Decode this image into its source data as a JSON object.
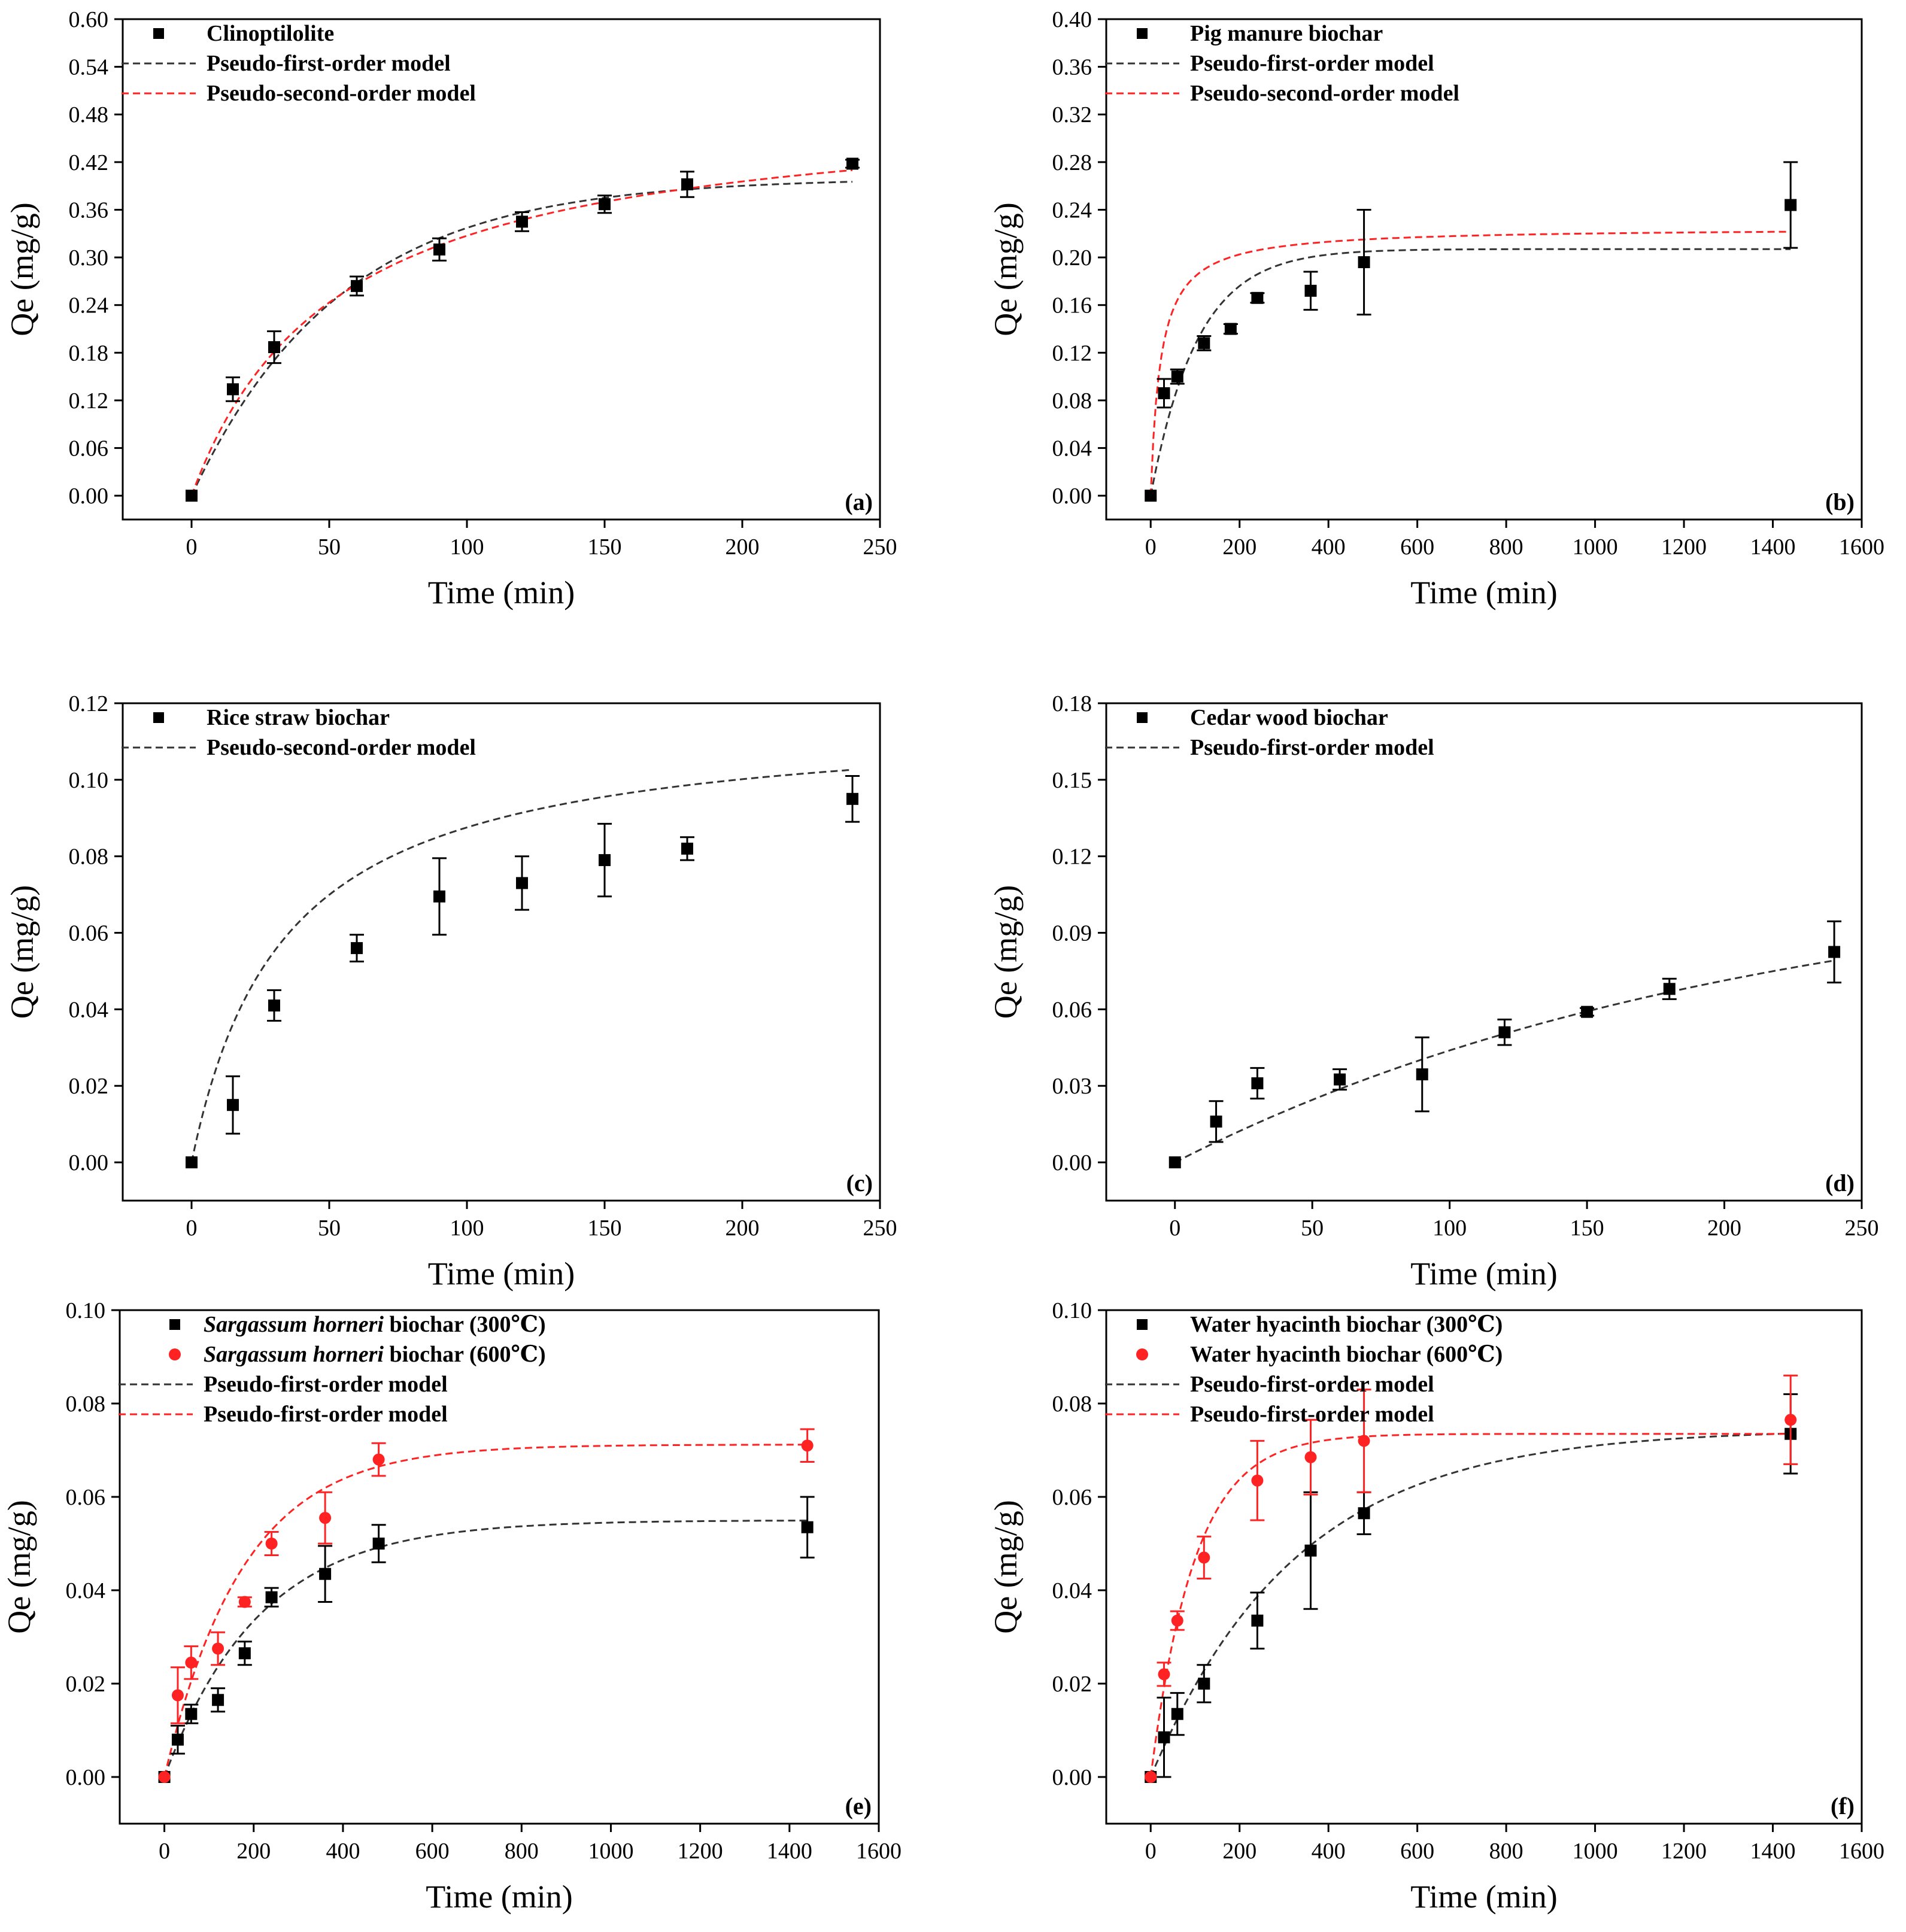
{
  "figure": {
    "name": "adsorption-kinetics-figure"
  },
  "chart_data": [
    {
      "type": "scatter",
      "panel_label": "(a)",
      "xlabel": "Time (min)",
      "ylabel": "Qe (mg/g)",
      "xlim": [
        -25,
        250
      ],
      "ylim": [
        -0.03,
        0.6
      ],
      "xticks": [
        0,
        50,
        100,
        150,
        200,
        250
      ],
      "yticks": [
        0.0,
        0.06,
        0.12,
        0.18,
        0.24,
        0.3,
        0.36,
        0.42,
        0.48,
        0.54,
        0.6
      ],
      "ytick_decimals": 2,
      "ytick_labels": [
        "0.00",
        "0.06",
        "0.12",
        "0.18",
        "0.24",
        "0.30",
        "0.36",
        "0.42",
        "0.48",
        "0.54",
        "0.60"
      ],
      "legend": [
        "Clinoptilolite",
        "Pseudo-first-order model",
        "Pseudo-second-order model"
      ],
      "points": [
        {
          "name": "Clinoptilolite",
          "color": "#000000",
          "marker": "square",
          "x": [
            0,
            15,
            30,
            60,
            90,
            120,
            150,
            180,
            240
          ],
          "y": [
            0.0,
            0.134,
            0.187,
            0.264,
            0.31,
            0.345,
            0.367,
            0.392,
            0.418
          ],
          "err": [
            0.0,
            0.015,
            0.02,
            0.012,
            0.014,
            0.012,
            0.011,
            0.016,
            0.005
          ]
        }
      ],
      "fits": [
        {
          "name": "Pseudo-first-order model",
          "color": "#333333",
          "kind": "pfo",
          "qe": 0.4,
          "k": 0.0185
        },
        {
          "name": "Pseudo-second-order model",
          "color": "#ff2222",
          "kind": "pso",
          "qe": 0.5,
          "k": 0.0379
        }
      ]
    },
    {
      "type": "scatter",
      "panel_label": "(b)",
      "xlabel": "Time (min)",
      "ylabel": "Qe (mg/g)",
      "xlim": [
        -100,
        1600
      ],
      "ylim": [
        -0.02,
        0.4
      ],
      "xticks": [
        0,
        200,
        400,
        600,
        800,
        1000,
        1200,
        1400,
        1600
      ],
      "yticks": [
        0.0,
        0.04,
        0.08,
        0.12,
        0.16,
        0.2,
        0.24,
        0.28,
        0.32,
        0.36,
        0.4
      ],
      "ytick_decimals": 2,
      "ytick_labels": [
        "0.00",
        "0.04",
        "0.08",
        "0.12",
        "0.16",
        "0.20",
        "0.24",
        "0.28",
        "0.32",
        "0.36",
        "0.40"
      ],
      "legend": [
        "Pig manure biochar",
        "Pseudo-first-order model",
        "Pseudo-second-order model"
      ],
      "points": [
        {
          "name": "Pig manure biochar",
          "color": "#000000",
          "marker": "square",
          "x": [
            0,
            30,
            60,
            120,
            180,
            240,
            360,
            480,
            1440
          ],
          "y": [
            0.0,
            0.086,
            0.1,
            0.128,
            0.14,
            0.166,
            0.172,
            0.196,
            0.244
          ],
          "err": [
            0.0,
            0.012,
            0.006,
            0.006,
            0.004,
            0.004,
            0.016,
            0.044,
            0.036
          ]
        }
      ],
      "fits": [
        {
          "name": "Pseudo-first-order model",
          "color": "#333333",
          "kind": "pfo",
          "qe": 0.207,
          "k": 0.0095
        },
        {
          "name": "Pseudo-second-order model",
          "color": "#ff2222",
          "kind": "pso",
          "qe": 0.225,
          "k": 0.2
        }
      ]
    },
    {
      "type": "scatter",
      "panel_label": "(c)",
      "xlabel": "Time (min)",
      "ylabel": "Qe (mg/g)",
      "xlim": [
        -25,
        250
      ],
      "ylim": [
        -0.01,
        0.12
      ],
      "xticks": [
        0,
        50,
        100,
        150,
        200,
        250
      ],
      "yticks": [
        0.0,
        0.02,
        0.04,
        0.06,
        0.08,
        0.1,
        0.12
      ],
      "ytick_decimals": 2,
      "ytick_labels": [
        "0.00",
        "0.02",
        "0.04",
        "0.06",
        "0.08",
        "0.10",
        "0.12"
      ],
      "legend": [
        "Rice straw biochar",
        "Pseudo-second-order model"
      ],
      "points": [
        {
          "name": "Rice straw biochar",
          "color": "#000000",
          "marker": "square",
          "x": [
            0,
            15,
            30,
            60,
            90,
            120,
            150,
            180,
            240
          ],
          "y": [
            0.0,
            0.015,
            0.041,
            0.056,
            0.0695,
            0.073,
            0.079,
            0.082,
            0.095
          ],
          "err": [
            0.0,
            0.0075,
            0.004,
            0.0035,
            0.01,
            0.007,
            0.0095,
            0.003,
            0.006
          ]
        }
      ],
      "fits": [
        {
          "name": "Pseudo-second-order model",
          "color": "#333333",
          "kind": "pso",
          "qe": 0.117,
          "k": 0.254
        }
      ]
    },
    {
      "type": "scatter",
      "panel_label": "(d)",
      "xlabel": "Time (min)",
      "ylabel": "Qe (mg/g)",
      "xlim": [
        -25,
        250
      ],
      "ylim": [
        -0.015,
        0.18
      ],
      "xticks": [
        0,
        50,
        100,
        150,
        200,
        250
      ],
      "yticks": [
        0.0,
        0.03,
        0.06,
        0.09,
        0.12,
        0.15,
        0.18
      ],
      "ytick_decimals": 2,
      "ytick_labels": [
        "0.00",
        "0.03",
        "0.06",
        "0.09",
        "0.12",
        "0.15",
        "0.18"
      ],
      "legend": [
        "Cedar wood biochar",
        "Pseudo-first-order model"
      ],
      "points": [
        {
          "name": "Cedar wood biochar",
          "color": "#000000",
          "marker": "square",
          "x": [
            0,
            15,
            30,
            60,
            90,
            120,
            150,
            180,
            240
          ],
          "y": [
            0.0,
            0.016,
            0.031,
            0.0325,
            0.0345,
            0.051,
            0.059,
            0.068,
            0.0825
          ],
          "err": [
            0.0,
            0.008,
            0.006,
            0.004,
            0.0145,
            0.005,
            0.0015,
            0.004,
            0.012
          ]
        }
      ],
      "fits": [
        {
          "name": "Pseudo-first-order model",
          "color": "#333333",
          "kind": "pfo",
          "qe": 0.117,
          "k": 0.0047
        }
      ]
    },
    {
      "type": "scatter",
      "panel_label": "(e)",
      "xlabel": "Time (min)",
      "ylabel": "Qe (mg/g)",
      "xlim": [
        -100,
        1600
      ],
      "ylim": [
        -0.01,
        0.1
      ],
      "xticks": [
        0,
        200,
        400,
        600,
        800,
        1000,
        1200,
        1400,
        1600
      ],
      "yticks": [
        0.0,
        0.02,
        0.04,
        0.06,
        0.08,
        0.1
      ],
      "ytick_decimals": 2,
      "ytick_labels": [
        "0.00",
        "0.02",
        "0.04",
        "0.06",
        "0.08",
        "0.10"
      ],
      "legend_rows": [
        {
          "italic": "Sargassum horneri",
          "rest": " biochar (300℃)"
        },
        {
          "italic": "Sargassum horneri",
          "rest": " biochar (600℃)"
        },
        {
          "italic": "",
          "rest": "Pseudo-first-order model"
        },
        {
          "italic": "",
          "rest": "Pseudo-first-order model"
        }
      ],
      "points": [
        {
          "name": "Sargassum horneri biochar (300℃)",
          "color": "#000000",
          "marker": "square",
          "x": [
            0,
            30,
            60,
            120,
            180,
            240,
            360,
            480,
            1440
          ],
          "y": [
            0.0,
            0.008,
            0.0135,
            0.0165,
            0.0265,
            0.0385,
            0.0435,
            0.05,
            0.0535
          ],
          "err": [
            0.0,
            0.003,
            0.002,
            0.0025,
            0.0025,
            0.002,
            0.006,
            0.004,
            0.0065
          ]
        },
        {
          "name": "Sargassum horneri biochar (600℃)",
          "color": "#ff2222",
          "marker": "circle",
          "x": [
            0,
            30,
            60,
            120,
            180,
            240,
            360,
            480,
            1440
          ],
          "y": [
            0.0,
            0.0175,
            0.0245,
            0.0275,
            0.0375,
            0.05,
            0.0555,
            0.068,
            0.071
          ],
          "err": [
            0.0,
            0.006,
            0.0035,
            0.0035,
            0.001,
            0.0025,
            0.0055,
            0.0035,
            0.0035
          ]
        }
      ],
      "fits": [
        {
          "name": "Pseudo-first-order model",
          "color": "#333333",
          "kind": "pfo",
          "qe": 0.055,
          "k": 0.00468
        },
        {
          "name": "Pseudo-first-order model",
          "color": "#ff2222",
          "kind": "pfo",
          "qe": 0.0712,
          "k": 0.00566
        }
      ]
    },
    {
      "type": "scatter",
      "panel_label": "(f)",
      "xlabel": "Time (min)",
      "ylabel": "Qe (mg/g)",
      "xlim": [
        -100,
        1600
      ],
      "ylim": [
        -0.01,
        0.1
      ],
      "xticks": [
        0,
        200,
        400,
        600,
        800,
        1000,
        1200,
        1400,
        1600
      ],
      "yticks": [
        0.0,
        0.02,
        0.04,
        0.06,
        0.08,
        0.1
      ],
      "ytick_decimals": 2,
      "ytick_labels": [
        "0.00",
        "0.02",
        "0.04",
        "0.06",
        "0.08",
        "0.10"
      ],
      "legend": [
        "Water hyacinth biochar (300℃)",
        "Water hyacinth biochar (600℃)",
        "Pseudo-first-order model",
        "Pseudo-first-order model"
      ],
      "points": [
        {
          "name": "Water hyacinth biochar (300℃)",
          "color": "#000000",
          "marker": "square",
          "x": [
            0,
            30,
            60,
            120,
            240,
            360,
            480,
            1440
          ],
          "y": [
            0.0,
            0.0085,
            0.0135,
            0.02,
            0.0335,
            0.0485,
            0.0565,
            0.0735
          ],
          "err": [
            0.0,
            0.0085,
            0.0045,
            0.004,
            0.006,
            0.0125,
            0.0045,
            0.0085
          ]
        },
        {
          "name": "Water hyacinth biochar (600℃)",
          "color": "#ff2222",
          "marker": "circle",
          "x": [
            0,
            30,
            60,
            120,
            240,
            360,
            480,
            1440
          ],
          "y": [
            0.0,
            0.022,
            0.0335,
            0.047,
            0.0635,
            0.0685,
            0.072,
            0.0765
          ],
          "err": [
            0.0,
            0.0025,
            0.002,
            0.0045,
            0.0085,
            0.008,
            0.011,
            0.0095
          ]
        }
      ],
      "fits": [
        {
          "name": "Pseudo-first-order model",
          "color": "#333333",
          "kind": "pfo",
          "qe": 0.0745,
          "k": 0.00305
        },
        {
          "name": "Pseudo-first-order model",
          "color": "#ff2222",
          "kind": "pfo",
          "qe": 0.0735,
          "k": 0.0101
        }
      ]
    }
  ]
}
